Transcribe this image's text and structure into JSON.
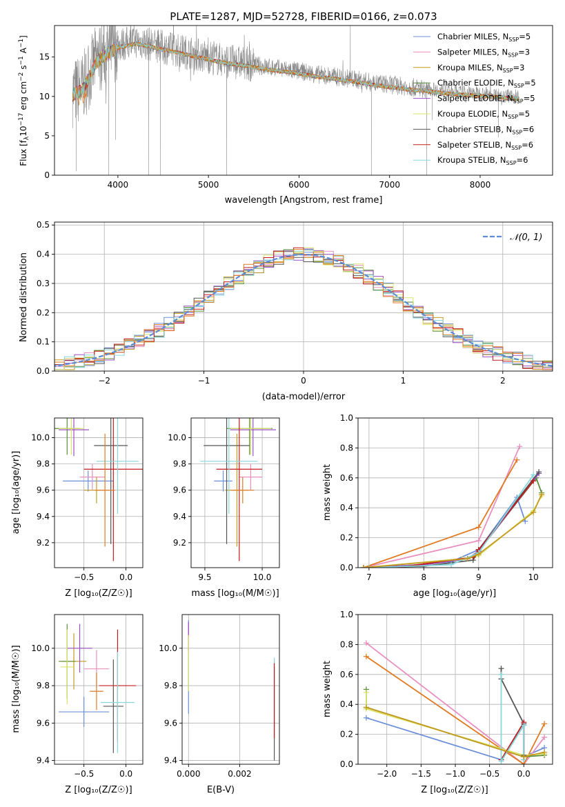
{
  "title": "PLATE=1287, MJD=52728, FIBERID=0166, z=0.073",
  "colors": {
    "s0": "#6b8fdb",
    "s1": "#e88fbf",
    "s2": "#c49a1e",
    "s3": "#5a8f3a",
    "s4": "#9a4fc4",
    "s5": "#d9e36a",
    "s6": "#555555",
    "s7": "#c41a1a",
    "s8": "#86d6dc",
    "orange": "#e07a22",
    "data": "#888888",
    "norm": "#5b8bd8"
  },
  "legend_top": [
    {
      "base": "Chabrier MILES, N",
      "sub": "SSP",
      "tail": "=5"
    },
    {
      "base": "Salpeter MILES, N",
      "sub": "SSP",
      "tail": "=3"
    },
    {
      "base": "Kroupa MILES, N",
      "sub": "SSP",
      "tail": "=3"
    },
    {
      "base": "Chabrier ELODIE, N",
      "sub": "SSP",
      "tail": "=5"
    },
    {
      "base": "Salpeter ELODIE, N",
      "sub": "SSP",
      "tail": "=5"
    },
    {
      "base": "Kroupa ELODIE, N",
      "sub": "SSP",
      "tail": "=5"
    },
    {
      "base": "Chabrier STELIB, N",
      "sub": "SSP",
      "tail": "=6"
    },
    {
      "base": "Salpeter STELIB, N",
      "sub": "SSP",
      "tail": "=6"
    },
    {
      "base": "Kroupa STELIB, N",
      "sub": "SSP",
      "tail": "=6"
    }
  ],
  "chart_data": [
    {
      "id": "spectrum",
      "type": "line",
      "xlabel": "wavelength [Angstrom, rest frame]",
      "ylabel": "Flux [f_λ 10^-17 erg cm^-2 s^-1 A^-1]",
      "ylabel_parts": {
        "a": "Flux [f",
        "b": "λ",
        "c": "10",
        "d": "−17",
        "e": " erg cm",
        "f": "−2",
        "g": " s",
        "h": "−1",
        "i": " A",
        "j": "−1",
        "k": "]"
      },
      "xlim": [
        3300,
        8800
      ],
      "ylim": [
        0,
        19
      ],
      "xticks": [
        4000,
        5000,
        6000,
        7000,
        8000
      ],
      "yticks": [
        0,
        5,
        10,
        15
      ],
      "continuum": [
        [
          3500,
          10.5
        ],
        [
          3600,
          11
        ],
        [
          3700,
          13
        ],
        [
          3750,
          14.5
        ],
        [
          3850,
          15.5
        ],
        [
          4000,
          16.5
        ],
        [
          4200,
          17
        ],
        [
          4400,
          16.5
        ],
        [
          4600,
          16
        ],
        [
          4800,
          15.5
        ],
        [
          5000,
          15
        ],
        [
          5200,
          14.5
        ],
        [
          5400,
          14.2
        ],
        [
          5600,
          13.8
        ],
        [
          5800,
          13.5
        ],
        [
          6000,
          13.2
        ],
        [
          6200,
          12.8
        ],
        [
          6400,
          12.5
        ],
        [
          6600,
          12.2
        ],
        [
          6800,
          11.8
        ],
        [
          7000,
          11.5
        ],
        [
          7200,
          11.2
        ],
        [
          7400,
          11
        ],
        [
          7600,
          10.7
        ],
        [
          7800,
          10.5
        ],
        [
          8000,
          10.4
        ],
        [
          8200,
          10.2
        ],
        [
          8400,
          10
        ]
      ],
      "spikes": [
        [
          3540,
          0.5
        ],
        [
          3900,
          0
        ],
        [
          3975,
          4.5
        ],
        [
          4100,
          17
        ],
        [
          4340,
          0
        ],
        [
          4470,
          0
        ],
        [
          4600,
          18
        ],
        [
          4800,
          17
        ],
        [
          5200,
          0
        ],
        [
          5500,
          15.5
        ],
        [
          6565,
          19
        ],
        [
          6800,
          0
        ],
        [
          7410,
          0
        ],
        [
          7470,
          7
        ],
        [
          8200,
          4.8
        ],
        [
          8500,
          7
        ]
      ]
    },
    {
      "id": "residuals",
      "type": "histogram",
      "xlabel": "(data-model)/error",
      "ylabel": "Normed distribution",
      "xlim": [
        -2.5,
        2.5
      ],
      "ylim": [
        0,
        0.51
      ],
      "xticks": [
        -2,
        -1,
        0,
        1,
        2
      ],
      "yticks": [
        0.0,
        0.1,
        0.2,
        0.3,
        0.4,
        0.5
      ],
      "legend": "𝒩(0, 1)",
      "bin_width": 0.1
    },
    {
      "id": "age_vs_Z",
      "type": "errorbar",
      "xlabel": "Z [log₁₀(Z/Z☉)]",
      "ylabel": "age  [log₁₀(age/yr)]",
      "xlim": [
        -0.85,
        0.2
      ],
      "ylim": [
        9.01,
        10.15
      ],
      "xticks": [
        -0.5,
        0.0
      ],
      "yticks": [
        9.2,
        9.4,
        9.6,
        9.8,
        10.0
      ],
      "points": [
        {
          "s": 0,
          "x": -0.45,
          "y": 9.67,
          "xerr": 0.3,
          "yerr": 0.08
        },
        {
          "s": 1,
          "x": -0.4,
          "y": 9.7,
          "xerr": 0.15,
          "yerr": 0.1
        },
        {
          "s": 2,
          "x": -0.35,
          "y": 9.6,
          "xerr": 0.15,
          "yerr": 0.1
        },
        {
          "s": 3,
          "x": -0.7,
          "y": 10.07,
          "xerr": 0.15,
          "yerr": 0.2
        },
        {
          "s": 4,
          "x": -0.62,
          "y": 10.06,
          "xerr": 0.18,
          "yerr": 0.2
        },
        {
          "s": 5,
          "x": -0.65,
          "y": 10.07,
          "xerr": 0.15,
          "yerr": 0.2
        },
        {
          "s": 6,
          "x": -0.18,
          "y": 9.94,
          "xerr": 0.2,
          "yerr": 0.75
        },
        {
          "s": 7,
          "x": -0.15,
          "y": 9.76,
          "xerr": 0.35,
          "yerr": 0.7
        },
        {
          "s": 8,
          "x": -0.1,
          "y": 9.82,
          "xerr": 0.25,
          "yerr": 0.4
        },
        {
          "s": 9,
          "x": -0.25,
          "y": 9.6,
          "xerr": 0.12,
          "yerr": 0.43
        }
      ]
    },
    {
      "id": "age_vs_mass",
      "type": "errorbar",
      "xlabel": "mass [log₁₀(M/M☉)]",
      "ylabel": "",
      "xlim": [
        9.38,
        10.15
      ],
      "ylim": [
        9.01,
        10.15
      ],
      "xticks": [
        9.5,
        10.0
      ],
      "yticks": [
        9.2,
        9.4,
        9.6,
        9.8,
        10.0
      ],
      "points": [
        {
          "s": 0,
          "x": 9.66,
          "y": 9.67,
          "xerr": 0.08,
          "yerr": 0.08
        },
        {
          "s": 1,
          "x": 9.9,
          "y": 9.7,
          "xerr": 0.1,
          "yerr": 0.1
        },
        {
          "s": 2,
          "x": 9.78,
          "y": 9.6,
          "xerr": 0.1,
          "yerr": 0.43
        },
        {
          "s": 3,
          "x": 9.89,
          "y": 10.07,
          "xerr": 0.2,
          "yerr": 0.2
        },
        {
          "s": 4,
          "x": 9.92,
          "y": 10.06,
          "xerr": 0.2,
          "yerr": 0.2
        },
        {
          "s": 5,
          "x": 9.9,
          "y": 10.07,
          "xerr": 0.18,
          "yerr": 0.2
        },
        {
          "s": 6,
          "x": 9.69,
          "y": 9.94,
          "xerr": 0.2,
          "yerr": 0.75
        },
        {
          "s": 7,
          "x": 9.8,
          "y": 9.76,
          "xerr": 0.2,
          "yerr": 0.7
        },
        {
          "s": 8,
          "x": 9.71,
          "y": 9.82,
          "xerr": 0.25,
          "yerr": 0.4
        },
        {
          "s": 9,
          "x": 9.83,
          "y": 9.6,
          "xerr": 0.1,
          "yerr": 0.1
        }
      ]
    },
    {
      "id": "weight_vs_age",
      "type": "line",
      "xlabel": "age  [log₁₀(age/yr)]",
      "ylabel": "mass weight",
      "xlim": [
        6.8,
        10.35
      ],
      "ylim": [
        0,
        1.0
      ],
      "xticks": [
        7,
        8,
        9,
        10
      ],
      "yticks": [
        0.0,
        0.2,
        0.4,
        0.6,
        0.8,
        1.0
      ],
      "series": [
        {
          "s": 0,
          "points": [
            [
              6.9,
              0
            ],
            [
              7.6,
              0.01
            ],
            [
              8.5,
              0.04
            ],
            [
              9.0,
              0.12
            ],
            [
              9.7,
              0.47
            ],
            [
              9.85,
              0.31
            ]
          ]
        },
        {
          "s": 1,
          "points": [
            [
              6.9,
              0
            ],
            [
              9.0,
              0.18
            ],
            [
              9.75,
              0.81
            ]
          ]
        },
        {
          "s": 9,
          "points": [
            [
              6.9,
              0
            ],
            [
              9.0,
              0.27
            ],
            [
              9.7,
              0.72
            ]
          ]
        },
        {
          "s": 3,
          "points": [
            [
              6.9,
              0
            ],
            [
              8.0,
              0.02
            ],
            [
              8.8,
              0.06
            ],
            [
              9.0,
              0.11
            ],
            [
              10.05,
              0.6
            ],
            [
              10.15,
              0.5
            ]
          ]
        },
        {
          "s": 4,
          "points": [
            [
              6.9,
              0
            ],
            [
              8.0,
              0.02
            ],
            [
              8.8,
              0.06
            ],
            [
              9.0,
              0.11
            ],
            [
              10.0,
              0.58
            ],
            [
              10.1,
              0.63
            ]
          ]
        },
        {
          "s": 5,
          "points": [
            [
              6.9,
              0
            ],
            [
              8.7,
              0.06
            ],
            [
              9.0,
              0.08
            ],
            [
              10.0,
              0.38
            ],
            [
              10.15,
              0.48
            ]
          ]
        },
        {
          "s": 6,
          "points": [
            [
              7.0,
              0
            ],
            [
              8.0,
              0.01
            ],
            [
              8.9,
              0.05
            ],
            [
              9.0,
              0.12
            ],
            [
              10.1,
              0.64
            ]
          ]
        },
        {
          "s": 7,
          "points": [
            [
              7.5,
              0
            ],
            [
              8.9,
              0.07
            ],
            [
              9.0,
              0.12
            ],
            [
              10.0,
              0.58
            ]
          ]
        },
        {
          "s": 8,
          "points": [
            [
              7.0,
              0
            ],
            [
              8.5,
              0.02
            ],
            [
              9.0,
              0.1
            ],
            [
              10.0,
              0.62
            ]
          ]
        },
        {
          "s": 2,
          "points": [
            [
              6.9,
              0
            ],
            [
              8.8,
              0.06
            ],
            [
              9.0,
              0.09
            ],
            [
              10.0,
              0.37
            ],
            [
              10.15,
              0.49
            ]
          ]
        }
      ]
    },
    {
      "id": "mass_vs_Z",
      "type": "errorbar",
      "xlabel": "Z [log₁₀(Z/Z☉)]",
      "ylabel": "mass [log₁₀(M/M☉)]",
      "xlim": [
        -0.85,
        0.2
      ],
      "ylim": [
        9.38,
        10.18
      ],
      "xticks": [
        -0.5,
        0.0
      ],
      "yticks": [
        9.4,
        9.6,
        9.8,
        10.0
      ],
      "points": [
        {
          "s": 0,
          "x": -0.5,
          "y": 9.66,
          "xerr": 0.3,
          "yerr": 0.08
        },
        {
          "s": 1,
          "x": -0.35,
          "y": 9.89,
          "xerr": 0.15,
          "yerr": 0.1
        },
        {
          "s": 2,
          "x": -0.62,
          "y": 9.93,
          "xerr": 0.15,
          "yerr": 0.15
        },
        {
          "s": 3,
          "x": -0.7,
          "y": 9.93,
          "xerr": 0.1,
          "yerr": 0.2
        },
        {
          "s": 4,
          "x": -0.55,
          "y": 10.0,
          "xerr": 0.15,
          "yerr": 0.13
        },
        {
          "s": 5,
          "x": -0.7,
          "y": 9.9,
          "xerr": 0.08,
          "yerr": 0.2
        },
        {
          "s": 6,
          "x": -0.15,
          "y": 9.69,
          "xerr": 0.12,
          "yerr": 0.25
        },
        {
          "s": 7,
          "x": -0.1,
          "y": 9.8,
          "xerr": 0.22,
          "yerr": 0.3
        },
        {
          "s": 8,
          "x": -0.1,
          "y": 9.71,
          "xerr": 0.2,
          "yerr": 0.27
        },
        {
          "s": 9,
          "x": -0.35,
          "y": 9.77,
          "xerr": 0.08,
          "yerr": 0.1
        }
      ]
    },
    {
      "id": "mass_vs_ebv",
      "type": "errorbar",
      "xlabel": "E(B-V)",
      "ylabel": "",
      "xlim": [
        -0.00025,
        0.00355
      ],
      "ylim": [
        9.38,
        10.18
      ],
      "xticks": [
        0.0,
        0.002
      ],
      "yticks": [
        9.4,
        9.6,
        9.8,
        10.0
      ],
      "points": [
        {
          "s": 0,
          "x": 0.0,
          "y": 9.9,
          "xerr": 0,
          "yerr": 0.25
        },
        {
          "s": 1,
          "x": 0.0,
          "y": 10.05,
          "xerr": 0,
          "yerr": 0.08
        },
        {
          "s": 4,
          "x": 0.0,
          "y": 10.06,
          "xerr": 0,
          "yerr": 0.08
        },
        {
          "s": 5,
          "x": 0.0,
          "y": 9.92,
          "xerr": 0,
          "yerr": 0.15
        },
        {
          "s": 6,
          "x": 0.00335,
          "y": 9.65,
          "xerr": 0,
          "yerr": 0.25
        },
        {
          "s": 8,
          "x": 0.00335,
          "y": 9.8,
          "xerr": 0,
          "yerr": 0.15
        },
        {
          "s": 7,
          "x": 0.00335,
          "y": 9.72,
          "xerr": 0,
          "yerr": 0.2
        }
      ]
    },
    {
      "id": "weight_vs_Z",
      "type": "line",
      "xlabel": "Z [log₁₀(Z/Z☉)]",
      "ylabel": "mass weight",
      "xlim": [
        -2.42,
        0.42
      ],
      "ylim": [
        0,
        1.0
      ],
      "xticks": [
        -2.0,
        -1.5,
        -1.0,
        -0.5,
        0.0
      ],
      "yticks": [
        0.0,
        0.2,
        0.4,
        0.6,
        0.8,
        1.0
      ],
      "series": [
        {
          "s": 0,
          "points": [
            [
              -2.3,
              0.31
            ],
            [
              -0.33,
              0.03
            ],
            [
              0.0,
              0.26
            ],
            [
              0.0,
              0.05
            ],
            [
              0.3,
              0.11
            ]
          ]
        },
        {
          "s": 1,
          "points": [
            [
              -2.3,
              0.81
            ],
            [
              0.0,
              0.0
            ],
            [
              0.3,
              0.18
            ]
          ]
        },
        {
          "s": 9,
          "points": [
            [
              -2.3,
              0.72
            ],
            [
              0.0,
              0.0
            ],
            [
              0.3,
              0.27
            ]
          ]
        },
        {
          "s": 3,
          "points": [
            [
              -2.3,
              0.5
            ],
            [
              -2.3,
              0.38
            ],
            [
              0.0,
              0.05
            ],
            [
              0.3,
              0.06
            ]
          ]
        },
        {
          "s": 5,
          "points": [
            [
              -2.3,
              0.48
            ],
            [
              -2.3,
              0.37
            ],
            [
              0.0,
              0.06
            ],
            [
              0.3,
              0.07
            ]
          ]
        },
        {
          "s": 6,
          "points": [
            [
              -0.33,
              0.64
            ],
            [
              -0.33,
              0.57
            ],
            [
              0.0,
              0.27
            ],
            [
              0.0,
              0.06
            ]
          ]
        },
        {
          "s": 7,
          "points": [
            [
              -0.33,
              0.03
            ],
            [
              0.0,
              0.28
            ],
            [
              0.0,
              0.03
            ]
          ]
        },
        {
          "s": 8,
          "points": [
            [
              -0.33,
              0.6
            ],
            [
              -0.33,
              0.02
            ],
            [
              0.0,
              0.26
            ],
            [
              0.0,
              0.03
            ]
          ]
        },
        {
          "s": 2,
          "points": [
            [
              -2.3,
              0.38
            ],
            [
              0.0,
              0.05
            ],
            [
              0.3,
              0.08
            ]
          ]
        }
      ]
    }
  ]
}
